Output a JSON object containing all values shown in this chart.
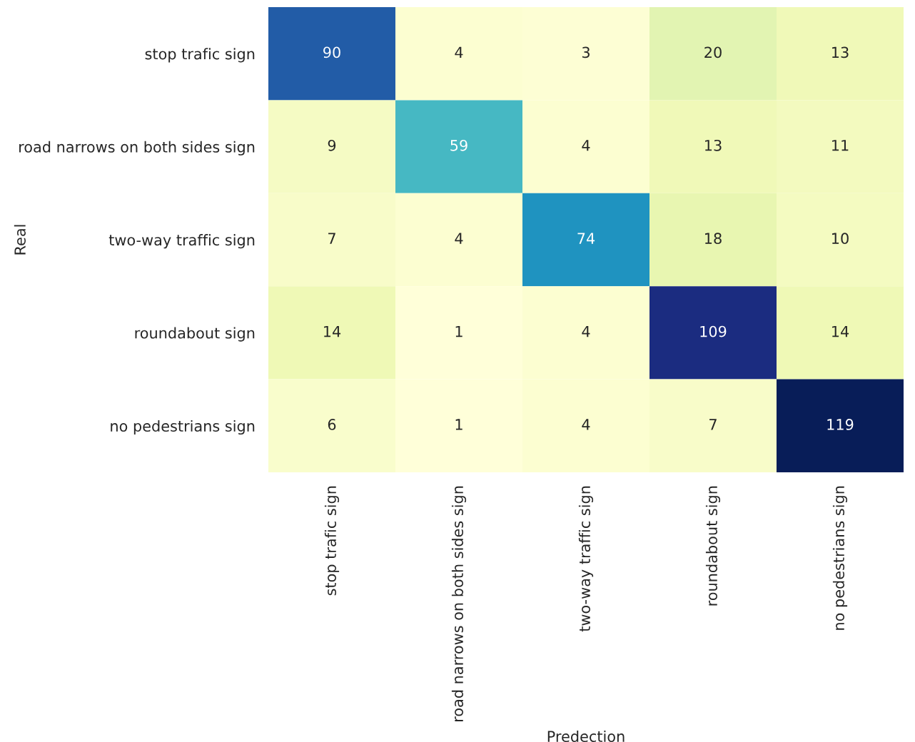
{
  "chart_data": {
    "type": "heatmap",
    "xlabel": "Predection",
    "ylabel": "Real",
    "categories": [
      "stop trafic sign",
      "road narrows on both sides sign",
      "two-way traffic sign",
      "roundabout sign",
      "no pedestrians sign"
    ],
    "y_categories": [
      "stop trafic sign",
      "road narrows on both sides sign",
      "two-way traffic sign",
      "roundabout sign",
      "no pedestrians sign"
    ],
    "cells": [
      [
        90,
        4,
        3,
        20,
        13
      ],
      [
        9,
        59,
        4,
        13,
        11
      ],
      [
        7,
        4,
        74,
        18,
        10
      ],
      [
        14,
        1,
        4,
        109,
        14
      ],
      [
        6,
        1,
        4,
        7,
        119
      ]
    ],
    "data_labels": true
  }
}
